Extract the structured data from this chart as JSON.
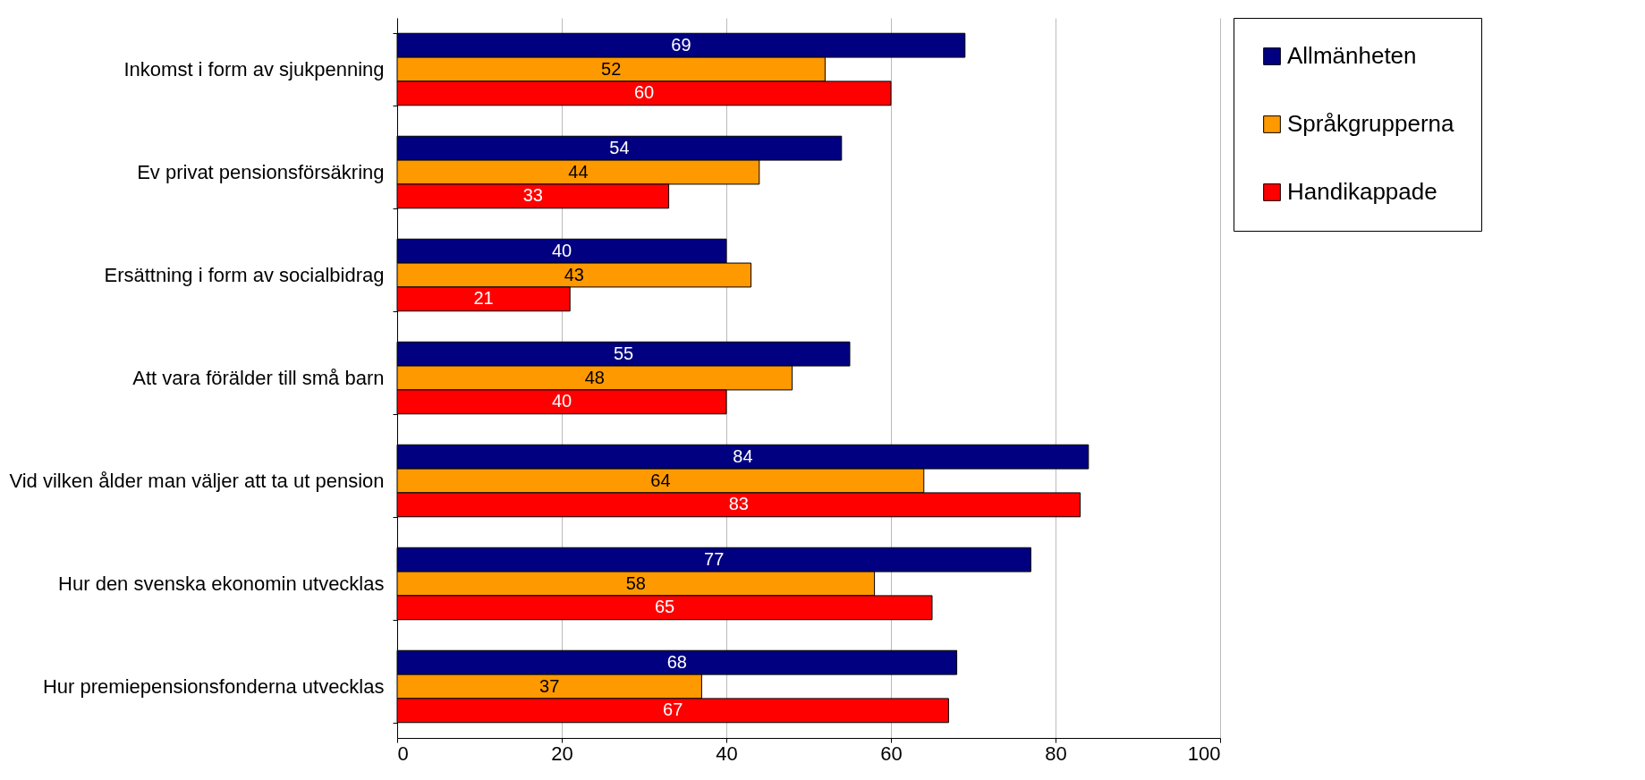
{
  "chart_data": {
    "type": "bar",
    "orientation": "horizontal",
    "categories": [
      "Inkomst i form av sjukpenning",
      "Ev privat pensionsförsäkring",
      "Ersättning i form av socialbidrag",
      "Att vara förälder till små barn",
      "Vid vilken ålder man väljer att ta ut pension",
      "Hur den svenska ekonomin utvecklas",
      "Hur premiepensionsfonderna utvecklas"
    ],
    "series": [
      {
        "name": "Allmänheten",
        "color": "#000080",
        "values": [
          69,
          54,
          40,
          55,
          84,
          77,
          68
        ]
      },
      {
        "name": "Språkgrupperna",
        "color": "#ff9900",
        "values": [
          52,
          44,
          43,
          48,
          64,
          58,
          37
        ]
      },
      {
        "name": "Handikappade",
        "color": "#ff0000",
        "values": [
          60,
          33,
          21,
          40,
          83,
          65,
          67
        ]
      }
    ],
    "xlim": [
      0,
      100
    ],
    "xticks": [
      0,
      20,
      40,
      60,
      80,
      100
    ],
    "grid": "x",
    "legend": "right",
    "data_labels": true
  }
}
